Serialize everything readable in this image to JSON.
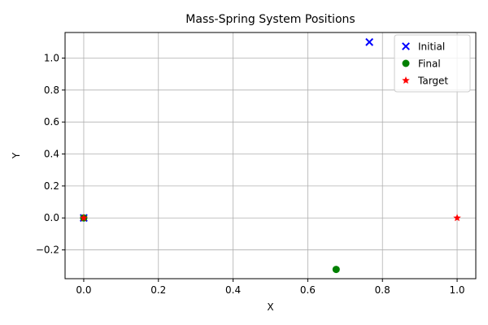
{
  "chart_data": {
    "type": "scatter",
    "title": "Mass-Spring System Positions",
    "xlabel": "X",
    "ylabel": "Y",
    "xlim": [
      -0.05,
      1.05
    ],
    "ylim": [
      -0.38,
      1.16
    ],
    "xticks": [
      0.0,
      0.2,
      0.4,
      0.6,
      0.8,
      1.0
    ],
    "xtick_labels": [
      "0.0",
      "0.2",
      "0.4",
      "0.6",
      "0.8",
      "1.0"
    ],
    "yticks": [
      -0.2,
      0.0,
      0.2,
      0.4,
      0.6,
      0.8,
      1.0
    ],
    "ytick_labels": [
      "−0.2",
      "0.0",
      "0.2",
      "0.4",
      "0.6",
      "0.8",
      "1.0"
    ],
    "grid": true,
    "legend_position": "top-right",
    "series": [
      {
        "name": "Initial",
        "marker": "x",
        "color": "#0000ff",
        "points": [
          [
            0.0,
            0.0
          ],
          [
            0.765,
            1.1
          ]
        ]
      },
      {
        "name": "Final",
        "marker": "circle",
        "color": "#008000",
        "points": [
          [
            0.0,
            0.0
          ],
          [
            0.676,
            -0.322
          ]
        ]
      },
      {
        "name": "Target",
        "marker": "star",
        "color": "#ff0000",
        "points": [
          [
            0.0,
            0.0
          ],
          [
            1.0,
            0.0
          ]
        ]
      }
    ]
  }
}
